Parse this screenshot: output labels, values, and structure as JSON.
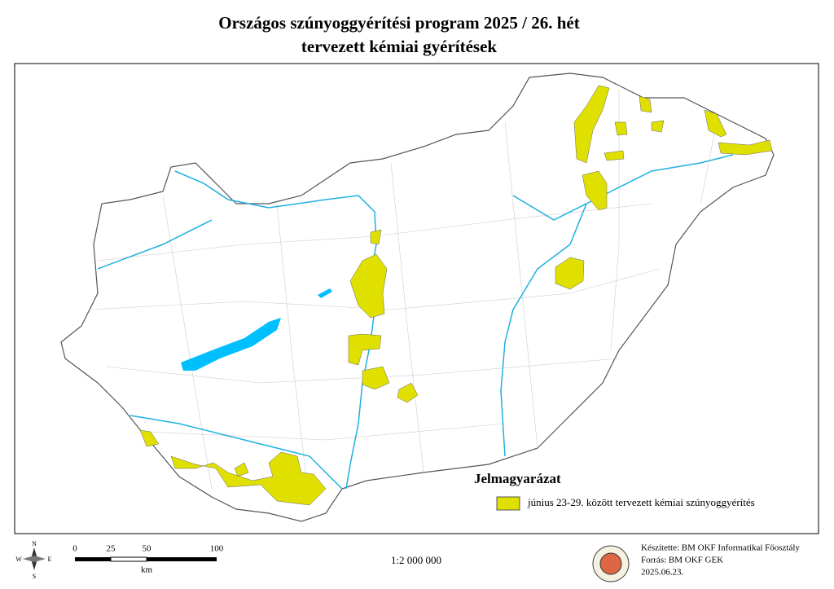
{
  "header": {
    "title_line1": "Országos szúnyoggyérítési program 2025 / 26. hét",
    "title_line2": "tervezett kémiai gyérítések"
  },
  "legend": {
    "title": "Jelmagyarázat",
    "items": [
      "június 23-29. között tervezett kémiai szúnyoggyérítés"
    ]
  },
  "compass": {
    "north": "N",
    "east": "E",
    "south": "S",
    "west": "W"
  },
  "scale_bar": {
    "ticks": [
      "0",
      "25",
      "50",
      "100"
    ],
    "unit": "km"
  },
  "scale_ratio": "1:2 000 000",
  "credits": {
    "made_by": "Készítette: BM OKF Informatikai Főosztály",
    "source": "Forrás: BM OKF GEK",
    "date": "2025.06.23."
  }
}
